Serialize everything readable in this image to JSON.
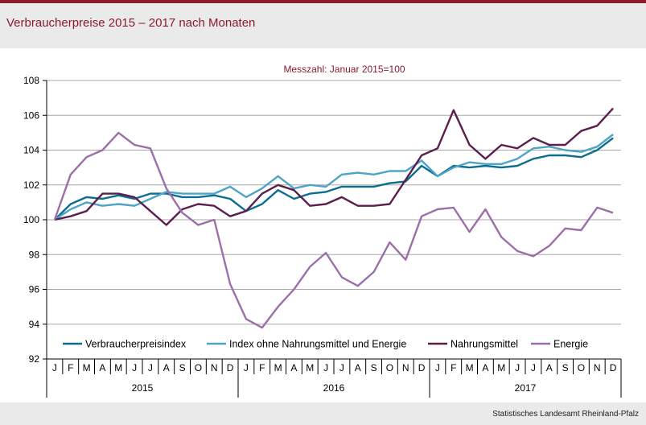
{
  "title": "Verbraucherpreise 2015 – 2017 nach Monaten",
  "source": "Statistisches Landesamt Rheinland-Pfalz",
  "chart_data": {
    "type": "line",
    "subtitle": "Messzahl: Januar 2015=100",
    "ylim": [
      92,
      108
    ],
    "yticks": [
      92,
      94,
      96,
      98,
      100,
      102,
      104,
      106,
      108
    ],
    "grid": true,
    "legend_position": "bottom-inside",
    "months": [
      "J",
      "F",
      "M",
      "A",
      "M",
      "J",
      "J",
      "A",
      "S",
      "O",
      "N",
      "D",
      "J",
      "F",
      "M",
      "A",
      "M",
      "J",
      "J",
      "A",
      "S",
      "O",
      "N",
      "D",
      "J",
      "F",
      "M",
      "A",
      "M",
      "J",
      "J",
      "A",
      "S",
      "O",
      "N",
      "D"
    ],
    "years": [
      "2015",
      "2016",
      "2017"
    ],
    "series": [
      {
        "name": "Verbraucherpreisindex",
        "color": "#0b6e8f",
        "values": [
          100.0,
          100.9,
          101.3,
          101.2,
          101.4,
          101.2,
          101.5,
          101.5,
          101.3,
          101.3,
          101.4,
          101.2,
          100.5,
          100.9,
          101.7,
          101.2,
          101.5,
          101.6,
          101.9,
          101.9,
          101.9,
          102.1,
          102.2,
          103.1,
          102.5,
          103.1,
          103.0,
          103.1,
          103.0,
          103.1,
          103.5,
          103.7,
          103.7,
          103.6,
          104.0,
          104.7
        ]
      },
      {
        "name": "Index ohne Nahrungsmittel und Energie",
        "color": "#4fa3c7",
        "values": [
          100.0,
          100.6,
          101.0,
          100.8,
          100.9,
          100.8,
          101.2,
          101.6,
          101.5,
          101.5,
          101.5,
          101.9,
          101.3,
          101.8,
          102.5,
          101.8,
          102.0,
          101.9,
          102.6,
          102.7,
          102.6,
          102.8,
          102.8,
          103.4,
          102.5,
          103.0,
          103.3,
          103.2,
          103.2,
          103.5,
          104.1,
          104.2,
          104.0,
          103.9,
          104.2,
          104.9
        ]
      },
      {
        "name": "Nahrungsmittel",
        "color": "#5c1e4c",
        "values": [
          100.0,
          100.2,
          100.5,
          101.5,
          101.5,
          101.3,
          100.5,
          99.7,
          100.6,
          100.9,
          100.8,
          100.2,
          100.5,
          101.5,
          102.0,
          101.7,
          100.8,
          100.9,
          101.3,
          100.8,
          100.8,
          100.9,
          102.3,
          103.7,
          104.1,
          106.3,
          104.3,
          103.5,
          104.3,
          104.1,
          104.7,
          104.3,
          104.3,
          105.1,
          105.4,
          106.4
        ]
      },
      {
        "name": "Energie",
        "color": "#9b6fa7",
        "values": [
          100.0,
          102.6,
          103.6,
          104.0,
          105.0,
          104.3,
          104.1,
          101.8,
          100.4,
          99.7,
          100.0,
          96.3,
          94.3,
          93.8,
          95.0,
          96.0,
          97.3,
          98.1,
          96.7,
          96.2,
          97.0,
          98.7,
          97.7,
          100.2,
          100.6,
          100.7,
          99.3,
          100.6,
          99.0,
          98.2,
          97.9,
          98.5,
          99.5,
          99.4,
          100.7,
          100.4
        ]
      }
    ]
  }
}
